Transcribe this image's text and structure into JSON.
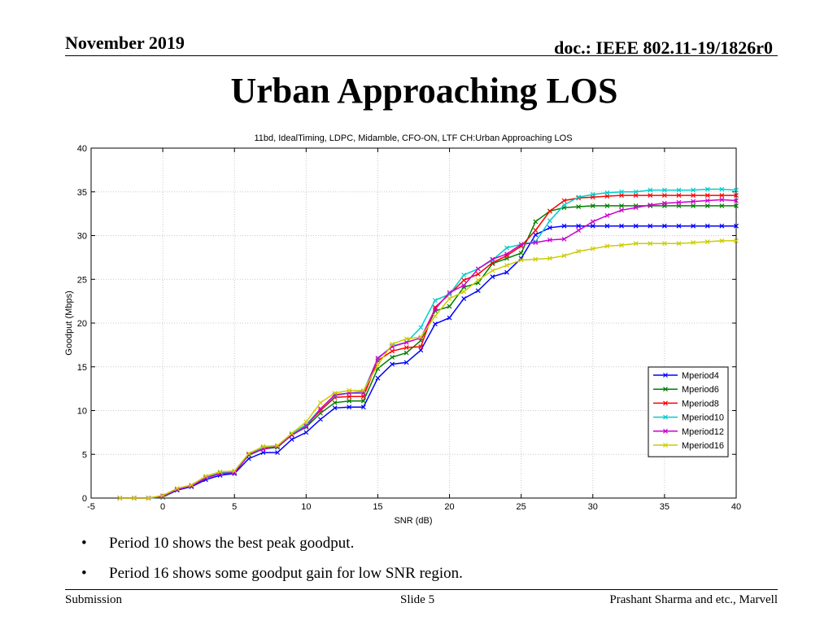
{
  "header": {
    "date": "November 2019",
    "doc": "doc.: IEEE 802.11-19/1826r0"
  },
  "slide": {
    "title": "Urban Approaching LOS",
    "bullets": [
      "Period 10 shows the best peak goodput.",
      "Period 16 shows some goodput gain for low SNR region."
    ]
  },
  "footer": {
    "left": "Submission",
    "center": "Slide 5",
    "right": "Prashant Sharma and etc., Marvell"
  },
  "chart_data": {
    "type": "line",
    "title": "11bd, IdealTiming, LDPC, Midamble, CFO-ON, LTF CH:Urban Approaching LOS",
    "xlabel": "SNR (dB)",
    "ylabel": "Goodput (Mbps)",
    "xlim": [
      -5,
      40
    ],
    "ylim": [
      0,
      40
    ],
    "xticks": [
      -5,
      0,
      5,
      10,
      15,
      20,
      25,
      30,
      35,
      40
    ],
    "yticks": [
      0,
      5,
      10,
      15,
      20,
      25,
      30,
      35,
      40
    ],
    "grid": true,
    "legend_position": "lower-right",
    "x": [
      -3,
      -2,
      -1,
      0,
      1,
      2,
      3,
      4,
      5,
      6,
      7,
      8,
      9,
      10,
      11,
      12,
      13,
      14,
      15,
      16,
      17,
      18,
      19,
      20,
      21,
      22,
      23,
      24,
      25,
      26,
      27,
      28,
      29,
      30,
      31,
      32,
      33,
      34,
      35,
      36,
      37,
      38,
      39,
      40
    ],
    "series": [
      {
        "name": "Mperiod4",
        "color": "#0000ff",
        "marker": "x",
        "values": [
          0,
          0,
          0,
          0.1,
          0.9,
          1.3,
          2.1,
          2.6,
          2.8,
          4.5,
          5.2,
          5.2,
          6.7,
          7.5,
          9.0,
          10.3,
          10.4,
          10.4,
          13.7,
          15.3,
          15.5,
          16.9,
          19.9,
          20.6,
          22.8,
          23.7,
          25.3,
          25.8,
          27.4,
          30.1,
          30.9,
          31.1,
          31.1,
          31.1,
          31.1,
          31.1,
          31.1,
          31.1,
          31.1,
          31.1,
          31.1,
          31.1,
          31.1,
          31.1
        ]
      },
      {
        "name": "Mperiod6",
        "color": "#008000",
        "marker": "x",
        "values": [
          0,
          0,
          0,
          0.1,
          1.0,
          1.4,
          2.3,
          2.8,
          2.9,
          4.9,
          5.6,
          5.8,
          7.2,
          8.1,
          9.7,
          10.9,
          11.1,
          11.1,
          14.8,
          16.1,
          16.6,
          18.0,
          21.4,
          21.9,
          24.1,
          24.6,
          26.8,
          27.4,
          28.0,
          31.6,
          32.8,
          33.2,
          33.3,
          33.4,
          33.4,
          33.4,
          33.4,
          33.4,
          33.4,
          33.4,
          33.4,
          33.4,
          33.4,
          33.4
        ]
      },
      {
        "name": "Mperiod8",
        "color": "#ff0000",
        "marker": "x",
        "values": [
          0,
          0,
          0,
          0.2,
          1.0,
          1.4,
          2.3,
          2.8,
          2.9,
          5.0,
          5.7,
          5.9,
          7.2,
          8.3,
          10.0,
          11.5,
          11.6,
          11.6,
          15.7,
          16.8,
          17.2,
          17.3,
          21.8,
          23.3,
          24.9,
          25.6,
          26.9,
          27.7,
          28.8,
          30.6,
          32.8,
          34.0,
          34.3,
          34.4,
          34.5,
          34.6,
          34.6,
          34.6,
          34.6,
          34.6,
          34.6,
          34.6,
          34.6,
          34.6
        ]
      },
      {
        "name": "Mperiod10",
        "color": "#00cccc",
        "marker": "x",
        "values": [
          0,
          0,
          0,
          0.2,
          1.0,
          1.4,
          2.4,
          2.9,
          3.0,
          5.0,
          5.8,
          6.0,
          7.3,
          8.4,
          10.2,
          11.7,
          12.0,
          12.2,
          15.9,
          17.4,
          17.8,
          19.5,
          22.6,
          23.3,
          25.5,
          26.2,
          27.2,
          28.6,
          29.0,
          29.3,
          31.7,
          33.5,
          34.4,
          34.7,
          34.9,
          35.0,
          35.0,
          35.2,
          35.2,
          35.2,
          35.2,
          35.3,
          35.3,
          35.2
        ]
      },
      {
        "name": "Mperiod12",
        "color": "#cc00cc",
        "marker": "x",
        "values": [
          0,
          0,
          0,
          0.2,
          1.0,
          1.4,
          2.3,
          2.8,
          2.9,
          5.0,
          5.6,
          5.9,
          7.2,
          8.2,
          10.2,
          11.8,
          12.0,
          12.0,
          16.0,
          17.3,
          17.8,
          18.3,
          21.6,
          23.5,
          24.3,
          26.2,
          27.3,
          27.9,
          29.0,
          29.2,
          29.5,
          29.6,
          30.6,
          31.6,
          32.3,
          32.9,
          33.2,
          33.5,
          33.7,
          33.8,
          33.9,
          34.0,
          34.1,
          34.0
        ]
      },
      {
        "name": "Mperiod16",
        "color": "#cccc00",
        "marker": "x",
        "values": [
          0,
          0,
          0,
          0.3,
          1.1,
          1.5,
          2.5,
          3.0,
          3.1,
          5.1,
          5.9,
          6.0,
          7.4,
          8.7,
          10.9,
          12.0,
          12.3,
          12.3,
          15.2,
          17.6,
          18.2,
          18.4,
          20.8,
          22.8,
          23.6,
          24.9,
          26.0,
          26.6,
          27.2,
          27.3,
          27.4,
          27.7,
          28.2,
          28.5,
          28.8,
          28.9,
          29.1,
          29.1,
          29.1,
          29.1,
          29.2,
          29.3,
          29.4,
          29.4
        ]
      }
    ]
  }
}
